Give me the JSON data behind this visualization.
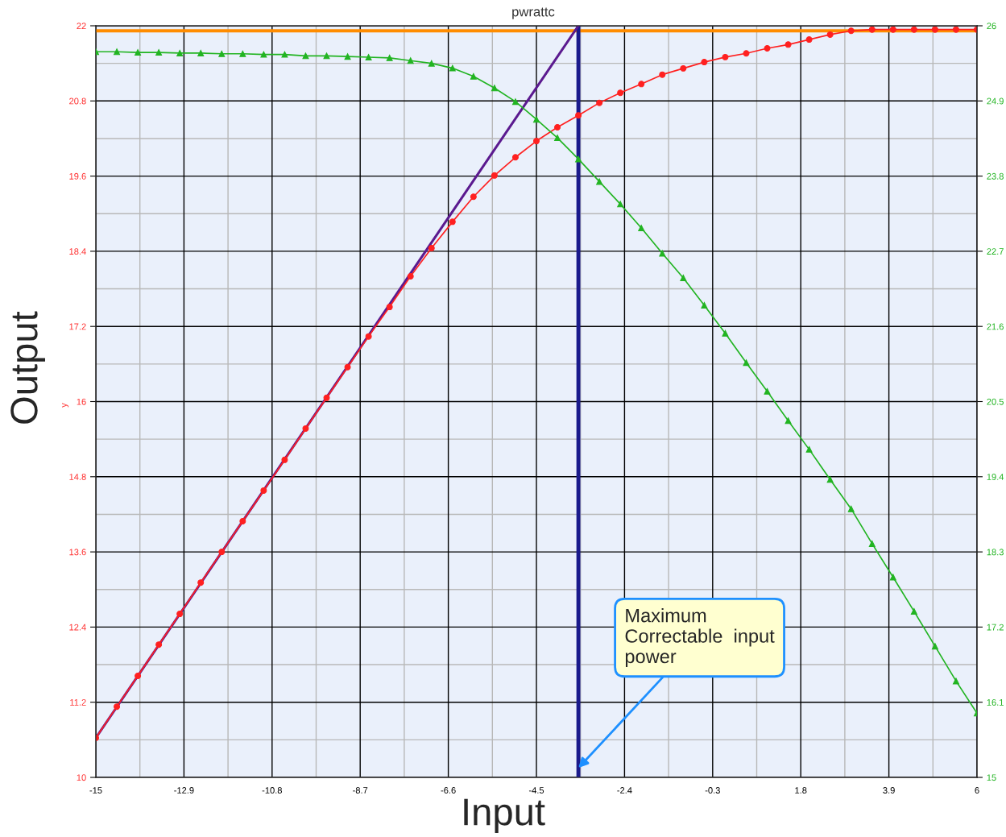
{
  "chart_data": {
    "type": "line",
    "title": "pwrattc",
    "xlabel": "Input",
    "ylabel": "Output",
    "x": [
      -15,
      -14.5,
      -14,
      -13.5,
      -13,
      -12.5,
      -12,
      -11.5,
      -11,
      -10.5,
      -10,
      -9.5,
      -9,
      -8.5,
      -8,
      -7.5,
      -7,
      -6.5,
      -6,
      -5.5,
      -5,
      -4.5,
      -4,
      -3.5,
      -3,
      -2.5,
      -2,
      -1.5,
      -1,
      -0.5,
      0,
      0.5,
      1,
      1.5,
      2,
      2.5,
      3,
      3.5,
      4,
      4.5,
      5,
      5.5,
      6
    ],
    "series": [
      {
        "color": "#ff2020",
        "marker": "circle",
        "values": [
          10.63,
          11.13,
          11.62,
          12.12,
          12.61,
          13.11,
          13.6,
          14.09,
          14.58,
          15.07,
          15.57,
          16.06,
          16.55,
          17.04,
          17.51,
          18.0,
          18.45,
          18.87,
          19.27,
          19.61,
          19.9,
          20.16,
          20.38,
          20.57,
          20.77,
          20.93,
          21.07,
          21.22,
          21.32,
          21.42,
          21.5,
          21.56,
          21.64,
          21.7,
          21.78,
          21.86,
          21.92,
          21.94,
          21.94,
          21.94,
          21.94,
          21.94,
          21.94
        ]
      },
      {
        "color": "#22b422",
        "marker": "triangle",
        "axis": "y2",
        "values": [
          25.62,
          25.62,
          25.61,
          25.61,
          25.6,
          25.6,
          25.59,
          25.59,
          25.58,
          25.58,
          25.56,
          25.56,
          25.55,
          25.54,
          25.53,
          25.49,
          25.45,
          25.38,
          25.26,
          25.09,
          24.89,
          24.63,
          24.36,
          24.05,
          23.72,
          23.39,
          23.04,
          22.67,
          22.31,
          21.91,
          21.5,
          21.07,
          20.65,
          20.22,
          19.8,
          19.36,
          18.93,
          18.42,
          17.93,
          17.43,
          16.92,
          16.41,
          15.94
        ]
      },
      {
        "color": "#5b1a8f",
        "marker": "none",
        "x": [
          -15,
          -3.5
        ],
        "values": [
          10.63,
          22.0
        ]
      }
    ],
    "ref_lines": [
      {
        "axis": "y",
        "value": 21.92,
        "color": "#ff8c00"
      },
      {
        "axis": "x",
        "value": -3.5,
        "color": "#1a1a8c"
      }
    ],
    "annotations": [
      {
        "text": "Maximum\nCorrectable  input\npower",
        "x": -3.5,
        "y": 10.15
      },
      "y"
    ],
    "xlim": [
      -15,
      6
    ],
    "xticks": [
      -15,
      -12.9,
      -10.8,
      -8.7,
      -6.6,
      -4.5,
      -2.4,
      -0.3,
      1.8,
      3.9,
      6
    ],
    "ylim": [
      10,
      22
    ],
    "yticks": [
      10,
      11.2,
      12.4,
      13.6,
      14.8,
      16,
      17.2,
      18.4,
      19.6,
      20.8,
      22
    ],
    "y2lim": [
      15,
      26
    ],
    "y2ticks": [
      15,
      16.1,
      17.2,
      18.3,
      19.4,
      20.5,
      21.6,
      22.7,
      23.8,
      24.9,
      26
    ],
    "grid": true,
    "legend": false
  }
}
